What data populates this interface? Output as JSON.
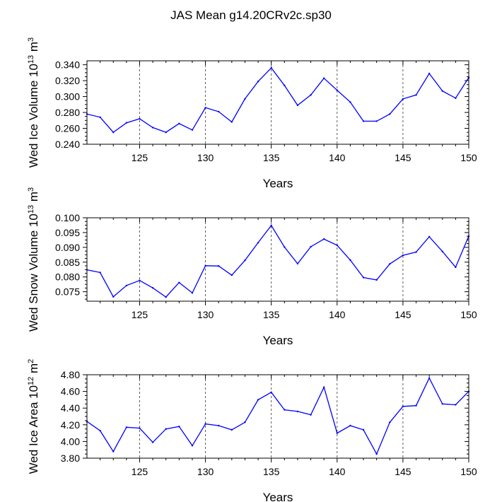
{
  "figure": {
    "title": "JAS Mean g14.20CRv2c.sp30"
  },
  "chart_data": [
    {
      "type": "line",
      "ylabel": {
        "text": "Wed Ice Volume 10",
        "exp": "13",
        "unit": " m",
        "unit_exp": "3"
      },
      "xlabel": "Years",
      "xlim": [
        121,
        150
      ],
      "ylim": [
        0.24,
        0.345
      ],
      "grid": "dashed vertical at major x ticks",
      "x_ticks": [
        125,
        130,
        135,
        140,
        145,
        150
      ],
      "x_tick_labels": [
        "125",
        "130",
        "135",
        "140",
        "145",
        "150"
      ],
      "y_ticks": [
        0.24,
        0.26,
        0.28,
        0.3,
        0.32,
        0.34
      ],
      "y_tick_labels": [
        "0.240",
        "0.260",
        "0.280",
        "0.300",
        "0.320",
        "0.340"
      ],
      "series": [
        {
          "name": "Wed Ice Volume",
          "color": "#0000ff",
          "x": [
            121,
            122,
            123,
            124,
            125,
            126,
            127,
            128,
            129,
            130,
            131,
            132,
            133,
            134,
            135,
            136,
            137,
            138,
            139,
            140,
            141,
            142,
            143,
            144,
            145,
            146,
            147,
            148,
            149,
            150
          ],
          "values": [
            0.278,
            0.274,
            0.255,
            0.267,
            0.272,
            0.261,
            0.255,
            0.266,
            0.258,
            0.286,
            0.281,
            0.268,
            0.297,
            0.319,
            0.336,
            0.314,
            0.289,
            0.302,
            0.323,
            0.308,
            0.293,
            0.269,
            0.269,
            0.278,
            0.297,
            0.302,
            0.329,
            0.307,
            0.298,
            0.324
          ]
        }
      ]
    },
    {
      "type": "line",
      "ylabel": {
        "text": "Wed Snow Volume 10",
        "exp": "13",
        "unit": " m",
        "unit_exp": "3"
      },
      "xlabel": "Years",
      "xlim": [
        121,
        150
      ],
      "ylim": [
        0.0718,
        0.1
      ],
      "grid": "dashed vertical at major x ticks",
      "x_ticks": [
        125,
        130,
        135,
        140,
        145,
        150
      ],
      "x_tick_labels": [
        "125",
        "130",
        "135",
        "140",
        "145",
        "150"
      ],
      "y_ticks": [
        0.075,
        0.08,
        0.085,
        0.09,
        0.095,
        0.1
      ],
      "y_tick_labels": [
        "0.075",
        "0.080",
        "0.085",
        "0.090",
        "0.095",
        "0.100"
      ],
      "series": [
        {
          "name": "Wed Snow Volume",
          "color": "#0000ff",
          "x": [
            121,
            122,
            123,
            124,
            125,
            126,
            127,
            128,
            129,
            130,
            131,
            132,
            133,
            134,
            135,
            136,
            137,
            138,
            139,
            140,
            141,
            142,
            143,
            144,
            145,
            146,
            147,
            148,
            149,
            150
          ],
          "values": [
            0.0824,
            0.0815,
            0.0733,
            0.0771,
            0.0788,
            0.0763,
            0.0732,
            0.0781,
            0.0746,
            0.0838,
            0.0837,
            0.0806,
            0.0856,
            0.0916,
            0.0974,
            0.0901,
            0.0845,
            0.0902,
            0.0928,
            0.0907,
            0.0857,
            0.0798,
            0.079,
            0.0844,
            0.0873,
            0.0884,
            0.0936,
            0.0886,
            0.0833,
            0.0938
          ]
        }
      ]
    },
    {
      "type": "line",
      "ylabel": {
        "text": "Wed Ice Area 10",
        "exp": "12",
        "unit": " m",
        "unit_exp": "2"
      },
      "xlabel": "Years",
      "xlim": [
        121,
        150
      ],
      "ylim": [
        3.8,
        4.8
      ],
      "grid": "dashed vertical at major x ticks",
      "x_ticks": [
        125,
        130,
        135,
        140,
        145,
        150
      ],
      "x_tick_labels": [
        "125",
        "130",
        "135",
        "140",
        "145",
        "150"
      ],
      "y_ticks": [
        3.8,
        4.0,
        4.2,
        4.4,
        4.6,
        4.8
      ],
      "y_tick_labels": [
        "3.80",
        "4.00",
        "4.20",
        "4.40",
        "4.60",
        "4.80"
      ],
      "series": [
        {
          "name": "Wed Ice Area",
          "color": "#0000ff",
          "x": [
            121,
            122,
            123,
            124,
            125,
            126,
            127,
            128,
            129,
            130,
            131,
            132,
            133,
            134,
            135,
            136,
            137,
            138,
            139,
            140,
            141,
            142,
            143,
            144,
            145,
            146,
            147,
            148,
            149,
            150
          ],
          "values": [
            4.24,
            4.13,
            3.88,
            4.17,
            4.16,
            3.99,
            4.15,
            4.18,
            3.95,
            4.21,
            4.19,
            4.14,
            4.23,
            4.5,
            4.59,
            4.38,
            4.36,
            4.32,
            4.65,
            4.1,
            4.19,
            4.14,
            3.85,
            4.23,
            4.42,
            4.43,
            4.76,
            4.45,
            4.44,
            4.6
          ]
        }
      ]
    }
  ]
}
